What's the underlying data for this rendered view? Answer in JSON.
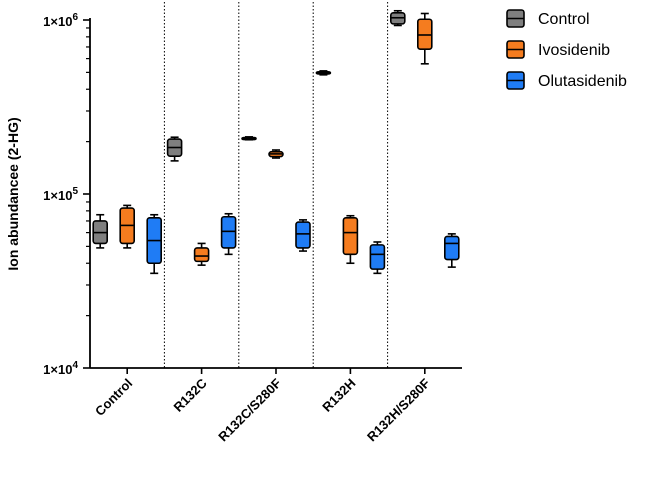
{
  "chart_data": {
    "type": "box",
    "scale": "log",
    "title": "",
    "xlabel": "",
    "ylabel": "Ion abundancee (2-HG)",
    "ylim": [
      10000,
      1000000
    ],
    "y_ticks": [
      {
        "value": 10000,
        "base": "1×10",
        "exp": "4"
      },
      {
        "value": 100000,
        "base": "1×10",
        "exp": "5"
      },
      {
        "value": 1000000,
        "base": "1×10",
        "exp": "6"
      }
    ],
    "categories": [
      "Control",
      "R132C",
      "R132C/S280F",
      "R132H",
      "R132H/S280F"
    ],
    "series": [
      {
        "name": "Control",
        "color": "#7f7f7f",
        "boxes": [
          {
            "min": 49000,
            "q1": 52000,
            "median": 60000,
            "q3": 70000,
            "max": 76000
          },
          {
            "min": 155000,
            "q1": 165000,
            "median": 185000,
            "q3": 207000,
            "max": 212000
          },
          {
            "min": 205000,
            "q1": 207000,
            "median": 209000,
            "q3": 211000,
            "max": 213000
          },
          {
            "min": 484000,
            "q1": 490000,
            "median": 497000,
            "q3": 504000,
            "max": 510000
          },
          {
            "min": 930000,
            "q1": 950000,
            "median": 1030000,
            "q3": 1100000,
            "max": 1130000
          }
        ]
      },
      {
        "name": "Ivosidenib",
        "color": "#f57c1f",
        "boxes": [
          {
            "min": 49000,
            "q1": 52000,
            "median": 66000,
            "q3": 83000,
            "max": 86000
          },
          {
            "min": 39000,
            "q1": 41000,
            "median": 44000,
            "q3": 49000,
            "max": 52000
          },
          {
            "min": 161000,
            "q1": 164000,
            "median": 170000,
            "q3": 175000,
            "max": 179000
          },
          {
            "min": 40000,
            "q1": 45000,
            "median": 60000,
            "q3": 73000,
            "max": 75000
          },
          {
            "min": 560000,
            "q1": 680000,
            "median": 820000,
            "q3": 1010000,
            "max": 1090000
          }
        ]
      },
      {
        "name": "Olutasidenib",
        "color": "#1f7cf5",
        "boxes": [
          {
            "min": 35000,
            "q1": 40000,
            "median": 54000,
            "q3": 73000,
            "max": 76000
          },
          {
            "min": 45000,
            "q1": 49000,
            "median": 61000,
            "q3": 74000,
            "max": 77000
          },
          {
            "min": 47000,
            "q1": 49000,
            "median": 59000,
            "q3": 69000,
            "max": 71000
          },
          {
            "min": 35000,
            "q1": 37000,
            "median": 45000,
            "q3": 51000,
            "max": 53000
          },
          {
            "min": 38000,
            "q1": 42000,
            "median": 52000,
            "q3": 57000,
            "max": 59000
          }
        ]
      }
    ],
    "legend_position": "top-right"
  }
}
